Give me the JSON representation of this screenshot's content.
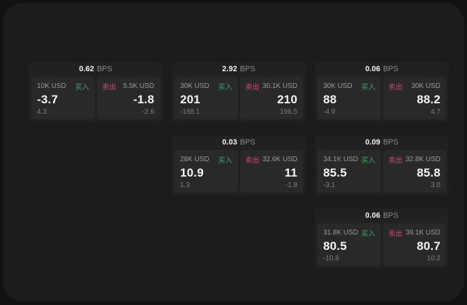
{
  "labels": {
    "bps_unit": "BPS",
    "buy": "买入",
    "sell": "卖出"
  },
  "colors": {
    "buy": "#40ab6d",
    "sell": "#d04c6e",
    "window_bg": "#1c1c1c",
    "card_bg": "#212121",
    "panel_bg": "#292929"
  },
  "cards": [
    {
      "grid": {
        "col": 1,
        "row": 1
      },
      "bps": "0.62",
      "buy": {
        "amount": "10K USD",
        "value": "-3.7",
        "delta": "4.3"
      },
      "sell": {
        "amount": "5.5K USD",
        "value": "-1.8",
        "delta": "-2.6"
      }
    },
    {
      "grid": {
        "col": 2,
        "row": 1
      },
      "bps": "2.92",
      "buy": {
        "amount": "30K USD",
        "value": "201",
        "delta": "-188.1"
      },
      "sell": {
        "amount": "30.1K USD",
        "value": "210",
        "delta": "196.5"
      }
    },
    {
      "grid": {
        "col": 3,
        "row": 1
      },
      "bps": "0.06",
      "buy": {
        "amount": "30K USD",
        "value": "88",
        "delta": "-4.9"
      },
      "sell": {
        "amount": "30K USD",
        "value": "88.2",
        "delta": "4.7"
      }
    },
    {
      "grid": {
        "col": 2,
        "row": 2
      },
      "bps": "0.03",
      "buy": {
        "amount": "28K USD",
        "value": "10.9",
        "delta": "1.3"
      },
      "sell": {
        "amount": "32.6K USD",
        "value": "11",
        "delta": "-1.8"
      }
    },
    {
      "grid": {
        "col": 3,
        "row": 2
      },
      "bps": "0.09",
      "buy": {
        "amount": "34.1K USD",
        "value": "85.5",
        "delta": "-3.1"
      },
      "sell": {
        "amount": "32.8K USD",
        "value": "85.8",
        "delta": "3.0"
      }
    },
    {
      "grid": {
        "col": 3,
        "row": 3
      },
      "bps": "0.06",
      "buy": {
        "amount": "31.8K USD",
        "value": "80.5",
        "delta": "-10.8"
      },
      "sell": {
        "amount": "39.1K USD",
        "value": "80.7",
        "delta": "10.2"
      }
    }
  ]
}
